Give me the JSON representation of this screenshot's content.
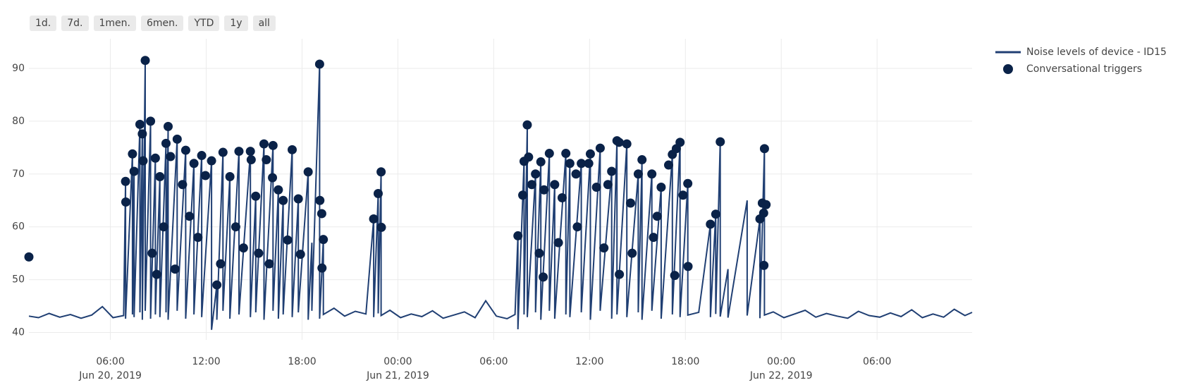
{
  "buttons": [
    "1d.",
    "7d.",
    "1men.",
    "6men.",
    "YTD",
    "1y",
    "all"
  ],
  "chart_data": {
    "type": "line",
    "xlim": [
      "2019-06-20 00:54",
      "2019-06-22 11:57"
    ],
    "ylim": [
      38.6,
      95.6
    ],
    "yticks": [
      40,
      50,
      60,
      70,
      80,
      90
    ],
    "xticks": [
      {
        "value": "2019-06-20 06:00",
        "label": "06:00",
        "date": "Jun 20, 2019"
      },
      {
        "value": "2019-06-20 12:00",
        "label": "12:00"
      },
      {
        "value": "2019-06-20 18:00",
        "label": "18:00"
      },
      {
        "value": "2019-06-21 00:00",
        "label": "00:00",
        "date": "Jun 21, 2019"
      },
      {
        "value": "2019-06-21 06:00",
        "label": "06:00"
      },
      {
        "value": "2019-06-21 12:00",
        "label": "12:00"
      },
      {
        "value": "2019-06-21 18:00",
        "label": "18:00"
      },
      {
        "value": "2019-06-22 00:00",
        "label": "00:00",
        "date": "Jun 22, 2019"
      },
      {
        "value": "2019-06-22 06:00",
        "label": "06:00"
      }
    ],
    "grid": true,
    "legend": "top-right",
    "series": [
      {
        "name": "Noise levels of device - ID15",
        "type": "line",
        "color": "#203f73",
        "x": [
          "2019-06-20 00:54",
          "2019-06-20 01:30",
          "2019-06-20 02:10",
          "2019-06-20 02:50",
          "2019-06-20 03:30",
          "2019-06-20 04:10",
          "2019-06-20 04:50",
          "2019-06-20 05:30",
          "2019-06-20 06:10",
          "2019-06-20 06:50",
          "2019-06-20 06:57",
          "2019-06-20 06:57",
          "2019-06-20 07:23",
          "2019-06-20 07:23",
          "2019-06-20 07:29",
          "2019-06-20 07:29",
          "2019-06-20 07:51",
          "2019-06-20 07:51",
          "2019-06-20 08:00",
          "2019-06-20 08:00",
          "2019-06-20 08:11",
          "2019-06-20 08:11",
          "2019-06-20 08:31",
          "2019-06-20 08:31",
          "2019-06-20 08:49",
          "2019-06-20 08:49",
          "2019-06-20 09:06",
          "2019-06-20 09:06",
          "2019-06-20 09:29",
          "2019-06-20 09:29",
          "2019-06-20 09:37",
          "2019-06-20 09:37",
          "2019-06-20 10:11",
          "2019-06-20 10:11",
          "2019-06-20 10:43",
          "2019-06-20 10:43",
          "2019-06-20 11:14",
          "2019-06-20 11:14",
          "2019-06-20 11:43",
          "2019-06-20 11:43",
          "2019-06-20 12:20",
          "2019-06-20 12:20",
          "2019-06-20 12:40",
          "2019-06-20 12:40",
          "2019-06-20 13:03",
          "2019-06-20 13:03",
          "2019-06-20 13:29",
          "2019-06-20 13:29",
          "2019-06-20 14:03",
          "2019-06-20 14:03",
          "2019-06-20 14:46",
          "2019-06-20 14:46",
          "2019-06-20 15:06",
          "2019-06-20 15:06",
          "2019-06-20 15:37",
          "2019-06-20 15:37",
          "2019-06-20 16:11",
          "2019-06-20 16:11",
          "2019-06-20 16:31",
          "2019-06-20 16:31",
          "2019-06-20 16:49",
          "2019-06-20 16:49",
          "2019-06-20 17:23",
          "2019-06-20 17:23",
          "2019-06-20 17:46",
          "2019-06-20 17:46",
          "2019-06-20 18:23",
          "2019-06-20 18:23",
          "2019-06-20 18:37",
          "2019-06-20 18:37",
          "2019-06-20 19:06",
          "2019-06-20 19:06",
          "2019-06-20 19:20",
          "2019-06-20 19:20",
          "2019-06-20 20:00",
          "2019-06-20 20:40",
          "2019-06-20 21:20",
          "2019-06-20 22:00",
          "2019-06-20 22:29",
          "2019-06-20 22:29",
          "2019-06-20 22:46",
          "2019-06-20 22:46",
          "2019-06-20 22:57",
          "2019-06-20 22:57",
          "2019-06-20 23:30",
          "2019-06-21 00:10",
          "2019-06-21 00:50",
          "2019-06-21 01:30",
          "2019-06-21 02:10",
          "2019-06-21 02:50",
          "2019-06-21 03:30",
          "2019-06-21 04:10",
          "2019-06-21 04:50",
          "2019-06-21 05:30",
          "2019-06-21 06:10",
          "2019-06-21 06:50",
          "2019-06-21 07:20",
          "2019-06-21 07:31",
          "2019-06-21 07:31",
          "2019-06-21 07:54",
          "2019-06-21 07:54",
          "2019-06-21 08:06",
          "2019-06-21 08:06",
          "2019-06-21 08:37",
          "2019-06-21 08:37",
          "2019-06-21 08:57",
          "2019-06-21 08:57",
          "2019-06-21 09:29",
          "2019-06-21 09:29",
          "2019-06-21 09:49",
          "2019-06-21 09:49",
          "2019-06-21 10:31",
          "2019-06-21 10:31",
          "2019-06-21 10:46",
          "2019-06-21 10:46",
          "2019-06-21 11:29",
          "2019-06-21 11:29",
          "2019-06-21 12:03",
          "2019-06-21 12:03",
          "2019-06-21 12:40",
          "2019-06-21 12:40",
          "2019-06-21 13:23",
          "2019-06-21 13:23",
          "2019-06-21 13:43",
          "2019-06-21 13:43",
          "2019-06-21 14:20",
          "2019-06-21 14:20",
          "2019-06-21 15:03",
          "2019-06-21 15:03",
          "2019-06-21 15:17",
          "2019-06-21 15:17",
          "2019-06-21 15:54",
          "2019-06-21 15:54",
          "2019-06-21 16:29",
          "2019-06-21 16:29",
          "2019-06-21 17:11",
          "2019-06-21 17:11",
          "2019-06-21 17:40",
          "2019-06-21 17:40",
          "2019-06-21 18:09",
          "2019-06-21 18:09",
          "2019-06-21 18:50",
          "2019-06-21 19:34",
          "2019-06-21 19:34",
          "2019-06-21 19:54",
          "2019-06-21 19:54",
          "2019-06-21 20:11",
          "2019-06-21 20:11",
          "2019-06-21 20:40",
          "2019-06-21 20:40",
          "2019-06-21 21:52",
          "2019-06-21 21:52",
          "2019-06-21 22:40",
          "2019-06-21 22:40",
          "2019-06-21 22:57",
          "2019-06-21 22:57",
          "2019-06-21 23:30",
          "2019-06-22 00:10",
          "2019-06-22 00:50",
          "2019-06-22 01:30",
          "2019-06-22 02:10",
          "2019-06-22 02:50",
          "2019-06-22 03:30",
          "2019-06-22 04:10",
          "2019-06-22 04:50",
          "2019-06-22 05:30",
          "2019-06-22 06:10",
          "2019-06-22 06:50",
          "2019-06-22 07:30",
          "2019-06-22 08:10",
          "2019-06-22 08:50",
          "2019-06-22 09:30",
          "2019-06-22 10:10",
          "2019-06-22 10:50",
          "2019-06-22 11:30",
          "2019-06-22 11:57"
        ],
        "values": [
          43.1,
          42.8,
          43.6,
          42.9,
          43.4,
          42.7,
          43.3,
          44.9,
          42.8,
          43.2,
          68.6,
          42.6,
          73.8,
          43.4,
          70.5,
          42.9,
          79.4,
          43.8,
          77.6,
          42.4,
          91.5,
          44.1,
          80.0,
          42.6,
          73.0,
          43.4,
          69.5,
          42.9,
          75.8,
          43.8,
          79.0,
          42.4,
          76.6,
          44.1,
          74.5,
          42.6,
          72.0,
          43.4,
          73.5,
          42.9,
          72.5,
          40.5,
          49.0,
          42.4,
          74.1,
          44.1,
          69.5,
          42.6,
          74.3,
          43.4,
          74.3,
          42.9,
          65.8,
          43.8,
          75.7,
          42.4,
          75.4,
          44.1,
          67.0,
          42.6,
          65.0,
          43.4,
          74.6,
          42.9,
          65.3,
          43.8,
          70.4,
          42.4,
          57.0,
          44.1,
          90.8,
          42.6,
          57.6,
          43.4,
          44.6,
          43.1,
          44.0,
          43.5,
          61.5,
          42.9,
          66.3,
          43.6,
          70.4,
          43.2,
          44.2,
          42.8,
          43.5,
          43.0,
          44.1,
          42.7,
          43.3,
          43.9,
          42.8,
          46.0,
          43.1,
          42.6,
          43.4,
          58.3,
          40.6,
          72.4,
          43.4,
          79.3,
          42.9,
          70.0,
          43.8,
          72.3,
          42.4,
          73.9,
          44.1,
          68.0,
          42.6,
          73.9,
          43.4,
          72.0,
          42.9,
          72.0,
          43.8,
          73.8,
          42.4,
          74.9,
          44.1,
          70.5,
          42.6,
          76.3,
          43.4,
          75.7,
          42.9,
          70.0,
          43.8,
          72.7,
          42.4,
          70.0,
          44.1,
          67.5,
          42.6,
          73.7,
          43.4,
          76.0,
          42.9,
          68.2,
          43.3,
          43.8,
          60.5,
          42.9,
          62.4,
          43.5,
          76.1,
          43.0,
          52.0,
          42.8,
          65.0,
          43.2,
          61.5,
          42.7,
          74.8,
          43.3,
          43.9,
          42.8,
          43.5,
          44.2,
          42.9,
          43.6,
          43.1,
          42.7,
          44.0,
          43.2,
          42.9,
          43.7,
          43.0,
          44.3,
          42.8,
          43.5,
          42.9,
          44.4,
          43.2,
          43.8
        ]
      },
      {
        "name": "Conversational triggers",
        "type": "scatter",
        "color": "#0a2248",
        "x": [
          "2019-06-20 00:54",
          "2019-06-20 06:57",
          "2019-06-20 06:58",
          "2019-06-20 07:23",
          "2019-06-20 07:29",
          "2019-06-20 07:51",
          "2019-06-20 08:00",
          "2019-06-20 08:03",
          "2019-06-20 08:11",
          "2019-06-20 08:31",
          "2019-06-20 08:37",
          "2019-06-20 08:49",
          "2019-06-20 08:54",
          "2019-06-20 09:06",
          "2019-06-20 09:20",
          "2019-06-20 09:29",
          "2019-06-20 09:37",
          "2019-06-20 09:46",
          "2019-06-20 10:03",
          "2019-06-20 10:11",
          "2019-06-20 10:31",
          "2019-06-20 10:43",
          "2019-06-20 10:57",
          "2019-06-20 11:14",
          "2019-06-20 11:29",
          "2019-06-20 11:43",
          "2019-06-20 11:57",
          "2019-06-20 12:20",
          "2019-06-20 12:40",
          "2019-06-20 12:54",
          "2019-06-20 13:03",
          "2019-06-20 13:29",
          "2019-06-20 13:51",
          "2019-06-20 14:03",
          "2019-06-20 14:20",
          "2019-06-20 14:46",
          "2019-06-20 14:49",
          "2019-06-20 15:06",
          "2019-06-20 15:17",
          "2019-06-20 15:37",
          "2019-06-20 15:46",
          "2019-06-20 15:57",
          "2019-06-20 16:09",
          "2019-06-20 16:11",
          "2019-06-20 16:31",
          "2019-06-20 16:49",
          "2019-06-20 17:06",
          "2019-06-20 17:23",
          "2019-06-20 17:46",
          "2019-06-20 17:54",
          "2019-06-20 18:23",
          "2019-06-20 19:06",
          "2019-06-20 19:07",
          "2019-06-20 19:14",
          "2019-06-20 19:15",
          "2019-06-20 19:20",
          "2019-06-20 22:29",
          "2019-06-20 22:46",
          "2019-06-20 22:57",
          "2019-06-20 22:58",
          "2019-06-21 07:31",
          "2019-06-21 07:49",
          "2019-06-21 07:54",
          "2019-06-21 08:06",
          "2019-06-21 08:11",
          "2019-06-21 08:23",
          "2019-06-21 08:37",
          "2019-06-21 08:51",
          "2019-06-21 08:57",
          "2019-06-21 09:06",
          "2019-06-21 09:09",
          "2019-06-21 09:29",
          "2019-06-21 09:49",
          "2019-06-21 10:03",
          "2019-06-21 10:17",
          "2019-06-21 10:31",
          "2019-06-21 10:46",
          "2019-06-21 11:09",
          "2019-06-21 11:14",
          "2019-06-21 11:29",
          "2019-06-21 11:57",
          "2019-06-21 12:03",
          "2019-06-21 12:26",
          "2019-06-21 12:40",
          "2019-06-21 12:54",
          "2019-06-21 13:09",
          "2019-06-21 13:23",
          "2019-06-21 13:43",
          "2019-06-21 13:51",
          "2019-06-21 13:52",
          "2019-06-21 14:20",
          "2019-06-21 14:34",
          "2019-06-21 14:40",
          "2019-06-21 15:03",
          "2019-06-21 15:17",
          "2019-06-21 15:54",
          "2019-06-21 16:00",
          "2019-06-21 16:14",
          "2019-06-21 16:29",
          "2019-06-21 16:57",
          "2019-06-21 17:11",
          "2019-06-21 17:20",
          "2019-06-21 17:26",
          "2019-06-21 17:40",
          "2019-06-21 17:51",
          "2019-06-21 18:09",
          "2019-06-21 18:10",
          "2019-06-21 19:34",
          "2019-06-21 19:54",
          "2019-06-21 20:11",
          "2019-06-21 22:40",
          "2019-06-21 22:49",
          "2019-06-21 22:54",
          "2019-06-21 22:55",
          "2019-06-21 22:57",
          "2019-06-21 23:03"
        ],
        "values": [
          54.3,
          68.6,
          64.7,
          73.8,
          70.5,
          79.4,
          77.6,
          72.5,
          91.5,
          80.0,
          55.0,
          73.0,
          51.0,
          69.5,
          60.0,
          75.8,
          79.0,
          73.3,
          52.0,
          76.6,
          68.0,
          74.5,
          62.0,
          72.0,
          58.0,
          73.5,
          69.7,
          72.5,
          49.0,
          53.0,
          74.1,
          69.5,
          60.0,
          74.3,
          56.0,
          74.3,
          72.7,
          65.8,
          55.0,
          75.7,
          72.7,
          53.0,
          69.3,
          75.4,
          67.0,
          65.0,
          57.5,
          74.6,
          65.3,
          54.8,
          70.4,
          90.8,
          65.0,
          62.5,
          52.2,
          57.6,
          61.5,
          66.3,
          70.4,
          59.9,
          58.3,
          66.0,
          72.4,
          79.3,
          73.2,
          68.0,
          70.0,
          55.0,
          72.3,
          50.5,
          67.0,
          73.9,
          68.0,
          57.0,
          65.5,
          73.9,
          72.0,
          70.0,
          60.0,
          72.0,
          72.0,
          73.8,
          67.5,
          74.9,
          56.0,
          68.0,
          70.5,
          76.3,
          76.0,
          51.0,
          75.7,
          64.5,
          55.0,
          70.0,
          72.7,
          70.0,
          58.0,
          62.0,
          67.5,
          71.7,
          73.7,
          50.8,
          74.8,
          76.0,
          66.0,
          68.2,
          52.5,
          60.5,
          62.4,
          76.1,
          61.5,
          64.5,
          62.6,
          52.7,
          74.8,
          64.2
        ]
      }
    ]
  }
}
